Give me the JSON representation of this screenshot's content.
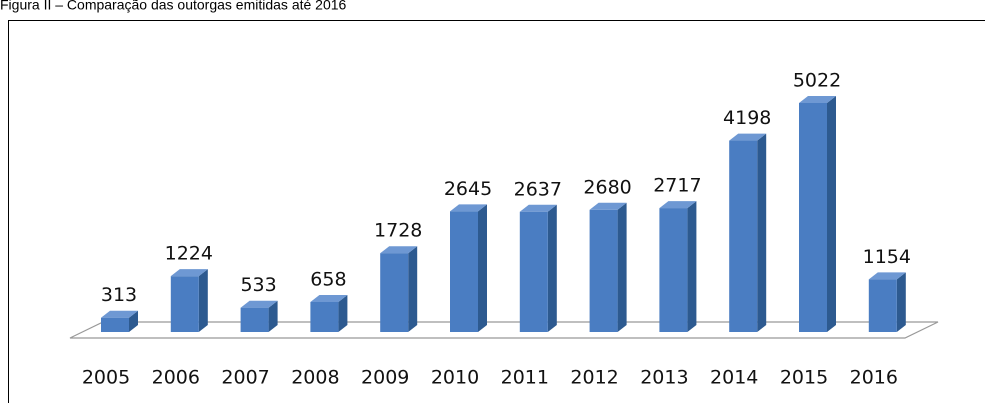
{
  "chart_data": {
    "type": "bar3d",
    "title": "Figura II – Comparação das outorgas emitidas  até 2016",
    "categories": [
      "2005",
      "2006",
      "2007",
      "2008",
      "2009",
      "2010",
      "2011",
      "2012",
      "2013",
      "2014",
      "2015",
      "2016"
    ],
    "values": [
      313,
      1224,
      533,
      658,
      1728,
      2645,
      2637,
      2680,
      2717,
      4198,
      5022,
      1154
    ],
    "color": "#4a7dc2"
  }
}
